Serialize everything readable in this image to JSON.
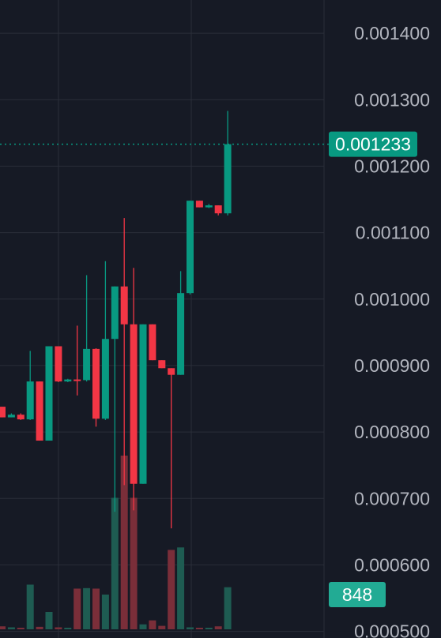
{
  "chart_data": {
    "type": "candlestick",
    "ylim": [
      0.00049,
      0.00145
    ],
    "y_ticks": [
      "0.001400",
      "0.001300",
      "0.001200",
      "0.001100",
      "0.001000",
      "0.000900",
      "0.000800",
      "0.000700",
      "0.000600",
      "0.000500"
    ],
    "last_price_label": "0.001233",
    "last_volume_label": "848",
    "colors": {
      "up": "#089981",
      "down": "#f23645",
      "up_volume": "#1e5c52",
      "down_volume": "#7a2e39",
      "background": "#161a25",
      "grid": "#2a2e39",
      "price_badge": "#089981",
      "volume_badge": "#22ab94"
    },
    "candles": [
      {
        "o": 0.000838,
        "h": 0.000838,
        "l": 0.000822,
        "c": 0.000822,
        "v": 60
      },
      {
        "o": 0.000822,
        "h": 0.000828,
        "l": 0.000822,
        "c": 0.000826,
        "v": 40
      },
      {
        "o": 0.000826,
        "h": 0.000828,
        "l": 0.000818,
        "c": 0.000819,
        "v": 30
      },
      {
        "o": 0.000819,
        "h": 0.000922,
        "l": 0.000818,
        "c": 0.000876,
        "v": 900
      },
      {
        "o": 0.000876,
        "h": 0.000876,
        "l": 0.000787,
        "c": 0.000787,
        "v": 50
      },
      {
        "o": 0.000787,
        "h": 0.000929,
        "l": 0.000787,
        "c": 0.000929,
        "v": 350
      },
      {
        "o": 0.000929,
        "h": 0.000929,
        "l": 0.000875,
        "c": 0.000876,
        "v": 40
      },
      {
        "o": 0.000876,
        "h": 0.00088,
        "l": 0.000875,
        "c": 0.000879,
        "v": 30
      },
      {
        "o": 0.000879,
        "h": 0.00096,
        "l": 0.000855,
        "c": 0.000878,
        "v": 820
      },
      {
        "o": 0.000878,
        "h": 0.001036,
        "l": 0.000876,
        "c": 0.000925,
        "v": 830
      },
      {
        "o": 0.000925,
        "h": 0.000926,
        "l": 0.000808,
        "c": 0.00082,
        "v": 820
      },
      {
        "o": 0.00082,
        "h": 0.001057,
        "l": 0.000818,
        "c": 0.00094,
        "v": 700
      },
      {
        "o": 0.00094,
        "h": 0.001019,
        "l": 0.00068,
        "c": 0.001019,
        "v": 2650
      },
      {
        "o": 0.001019,
        "h": 0.001122,
        "l": 0.00072,
        "c": 0.000962,
        "v": 3500
      },
      {
        "o": 0.000962,
        "h": 0.001047,
        "l": 0.000682,
        "c": 0.000722,
        "v": 2650
      },
      {
        "o": 0.000722,
        "h": 0.000962,
        "l": 0.000722,
        "c": 0.000962,
        "v": 100
      },
      {
        "o": 0.000962,
        "h": 0.000962,
        "l": 0.000908,
        "c": 0.000908,
        "v": 180
      },
      {
        "o": 0.000908,
        "h": 0.000908,
        "l": 0.000896,
        "c": 0.000896,
        "v": 70
      },
      {
        "o": 0.000896,
        "h": 0.000896,
        "l": 0.000655,
        "c": 0.000886,
        "v": 1600
      },
      {
        "o": 0.000886,
        "h": 0.001042,
        "l": 0.000886,
        "c": 0.001009,
        "v": 1650
      },
      {
        "o": 0.001009,
        "h": 0.001148,
        "l": 0.001007,
        "c": 0.001148,
        "v": 40
      },
      {
        "o": 0.001148,
        "h": 0.001148,
        "l": 0.001138,
        "c": 0.001138,
        "v": 30
      },
      {
        "o": 0.001138,
        "h": 0.001143,
        "l": 0.001137,
        "c": 0.001141,
        "v": 30
      },
      {
        "o": 0.001141,
        "h": 0.001141,
        "l": 0.001126,
        "c": 0.001129,
        "v": 60
      },
      {
        "o": 0.001129,
        "h": 0.001283,
        "l": 0.001126,
        "c": 0.001233,
        "v": 848
      }
    ]
  }
}
